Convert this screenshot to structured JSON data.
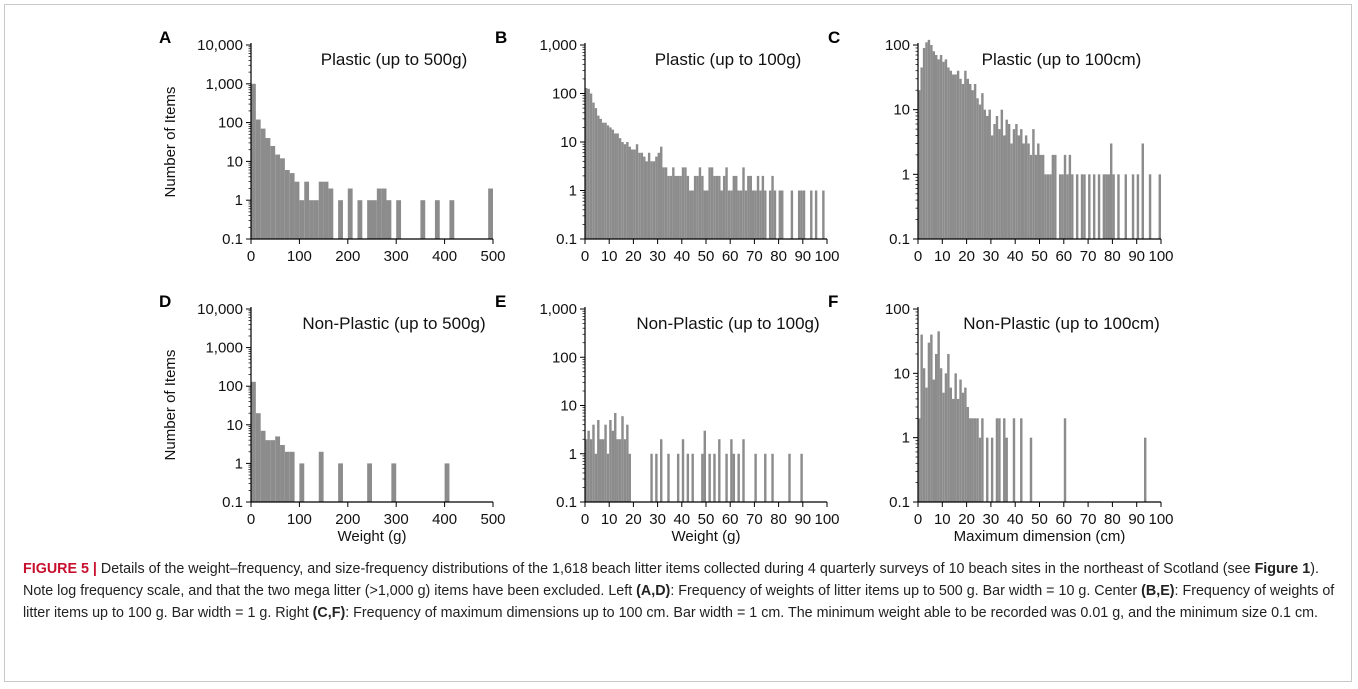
{
  "figure": {
    "y_axis_label": "Number of Items",
    "y_ticks": [
      "0.1",
      "1",
      "10",
      "100",
      "1,000",
      "10,000"
    ]
  },
  "caption": {
    "label": "FIGURE 5 |",
    "text1": " Details of the weight–frequency, and size-frequency distributions of the 1,618 beach litter items collected during 4 quarterly surveys of 10 beach sites in the northeast of Scotland (see ",
    "fig_ref": "Figure 1",
    "text2": "). Note log frequency scale, and that the two mega litter (>1,000 g) items have been excluded. Left ",
    "ref_ad": "(A,D)",
    "text3": ": Frequency of weights of litter items up to 500 g. Bar width = 10 g. Center ",
    "ref_be": "(B,E)",
    "text4": ": Frequency of weights of litter items up to 100 g. Bar width = 1 g. Right ",
    "ref_cf": "(C,F)",
    "text5": ": Frequency of maximum dimensions up to 100 cm. Bar width = 1 cm. The minimum weight able to be recorded was 0.01 g, and the minimum size 0.1 cm."
  },
  "colors": {
    "bar": "#8c8c8c",
    "axis": "#000000",
    "caption_label": "#c8102e"
  },
  "chart_data": [
    {
      "panel": "A",
      "type": "bar",
      "title": "Plastic (up to 500g)",
      "scale": "log",
      "xlabel": "",
      "xlim": [
        0,
        500
      ],
      "x_ticks": [
        "0",
        "100",
        "200",
        "300",
        "400",
        "500"
      ],
      "ylim": [
        0.1,
        10000
      ],
      "y_ticks": [
        "0.1",
        "1",
        "10",
        "100",
        "1,000",
        "10,000"
      ],
      "ylabel": "Number of Items",
      "bin_width": 10,
      "bins": [
        0,
        10,
        20,
        30,
        40,
        50,
        60,
        70,
        80,
        90,
        100,
        110,
        120,
        130,
        140,
        150,
        160,
        180,
        200,
        220,
        240,
        250,
        260,
        270,
        280,
        300,
        350,
        380,
        410,
        490
      ],
      "values": [
        1000,
        120,
        70,
        40,
        25,
        15,
        12,
        6,
        5,
        3,
        1,
        3,
        1,
        1,
        3,
        3,
        2,
        1,
        2,
        1,
        1,
        1,
        2,
        2,
        1,
        1,
        1,
        1,
        1,
        2
      ]
    },
    {
      "panel": "B",
      "type": "bar",
      "title": "Plastic (up to 100g)",
      "scale": "log",
      "xlabel": "",
      "xlim": [
        0,
        100
      ],
      "x_ticks": [
        "0",
        "10",
        "20",
        "30",
        "40",
        "50",
        "60",
        "70",
        "80",
        "90",
        "100"
      ],
      "ylim": [
        0.1,
        1000
      ],
      "y_ticks": [
        "0.1",
        "1",
        "10",
        "100",
        "1,000"
      ],
      "bin_width": 1,
      "bins": [
        0,
        1,
        2,
        3,
        4,
        5,
        6,
        7,
        8,
        9,
        10,
        11,
        12,
        13,
        14,
        15,
        16,
        17,
        18,
        19,
        20,
        21,
        22,
        23,
        24,
        25,
        26,
        27,
        28,
        29,
        30,
        31,
        32,
        33,
        34,
        35,
        36,
        37,
        38,
        39,
        40,
        41,
        42,
        43,
        44,
        45,
        46,
        47,
        48,
        49,
        50,
        51,
        52,
        53,
        54,
        55,
        56,
        57,
        58,
        59,
        60,
        61,
        62,
        63,
        64,
        65,
        66,
        67,
        68,
        69,
        70,
        71,
        72,
        73,
        74,
        76,
        77,
        78,
        80,
        81,
        85,
        88,
        89,
        90,
        93,
        95,
        98
      ],
      "values": [
        130,
        125,
        100,
        65,
        50,
        35,
        30,
        25,
        25,
        22,
        20,
        18,
        15,
        15,
        12,
        10,
        9,
        10,
        8,
        7,
        7,
        9,
        6,
        6,
        5,
        4,
        6,
        4,
        4,
        5,
        6,
        8,
        3,
        3,
        2,
        2,
        3,
        2,
        2,
        2,
        3,
        3,
        2,
        1,
        1,
        2,
        2,
        3,
        2,
        1,
        1,
        3,
        3,
        2,
        2,
        2,
        1,
        2,
        3,
        1,
        1,
        2,
        2,
        1,
        1,
        3,
        1,
        2,
        2,
        1,
        1,
        2,
        1,
        2,
        1,
        1,
        2,
        1,
        1,
        1,
        1,
        1,
        1,
        1,
        1,
        1,
        1
      ]
    },
    {
      "panel": "C",
      "type": "bar",
      "title": "Plastic (up to 100cm)",
      "scale": "log",
      "xlabel": "",
      "xlim": [
        0,
        100
      ],
      "x_ticks": [
        "0",
        "10",
        "20",
        "30",
        "40",
        "50",
        "60",
        "70",
        "80",
        "90",
        "100"
      ],
      "ylim": [
        0.1,
        100
      ],
      "y_ticks": [
        "0.1",
        "1",
        "10",
        "100"
      ],
      "bin_width": 1,
      "bins": [
        0,
        1,
        2,
        3,
        4,
        5,
        6,
        7,
        8,
        9,
        10,
        11,
        12,
        13,
        14,
        15,
        16,
        17,
        18,
        19,
        20,
        21,
        22,
        23,
        24,
        25,
        26,
        27,
        28,
        29,
        30,
        31,
        32,
        33,
        34,
        35,
        36,
        37,
        38,
        39,
        40,
        41,
        42,
        43,
        44,
        45,
        46,
        47,
        48,
        49,
        50,
        51,
        52,
        53,
        54,
        55,
        56,
        58,
        59,
        60,
        61,
        62,
        63,
        65,
        67,
        68,
        70,
        72,
        74,
        76,
        77,
        78,
        79,
        80,
        82,
        85,
        88,
        90,
        92,
        95,
        99
      ],
      "values": [
        20,
        45,
        90,
        110,
        120,
        100,
        80,
        70,
        60,
        70,
        55,
        60,
        45,
        40,
        35,
        35,
        40,
        30,
        25,
        40,
        30,
        25,
        20,
        25,
        15,
        12,
        18,
        10,
        8,
        10,
        4,
        6,
        8,
        5,
        10,
        4,
        7,
        6,
        3,
        5,
        6,
        4,
        5,
        3,
        4,
        3,
        2,
        5,
        2,
        3,
        2,
        2,
        1,
        1,
        1,
        2,
        2,
        1,
        1,
        2,
        1,
        2,
        1,
        1,
        1,
        1,
        1,
        1,
        1,
        1,
        1,
        1,
        3,
        1,
        1,
        1,
        1,
        1,
        3,
        1,
        1
      ]
    },
    {
      "panel": "D",
      "type": "bar",
      "title": "Non-Plastic (up to 500g)",
      "scale": "log",
      "xlabel": "Weight (g)",
      "xlim": [
        0,
        500
      ],
      "x_ticks": [
        "0",
        "100",
        "200",
        "300",
        "400",
        "500"
      ],
      "ylim": [
        0.1,
        10000
      ],
      "y_ticks": [
        "0.1",
        "1",
        "10",
        "100",
        "1,000",
        "10,000"
      ],
      "ylabel": "Number of Items",
      "bin_width": 10,
      "bins": [
        0,
        10,
        20,
        30,
        40,
        50,
        60,
        70,
        80,
        100,
        140,
        180,
        240,
        290,
        400
      ],
      "values": [
        130,
        20,
        7,
        4,
        4,
        5,
        3,
        2,
        2,
        1,
        2,
        1,
        1,
        1,
        1
      ]
    },
    {
      "panel": "E",
      "type": "bar",
      "title": "Non-Plastic (up to 100g)",
      "scale": "log",
      "xlabel": "Weight (g)",
      "xlim": [
        0,
        100
      ],
      "x_ticks": [
        "0",
        "10",
        "20",
        "30",
        "40",
        "50",
        "60",
        "70",
        "80",
        "90",
        "100"
      ],
      "ylim": [
        0.1,
        1000
      ],
      "y_ticks": [
        "0.1",
        "1",
        "10",
        "100",
        "1,000"
      ],
      "bin_width": 1,
      "bins": [
        0,
        1,
        2,
        3,
        4,
        5,
        6,
        7,
        8,
        9,
        10,
        11,
        12,
        13,
        14,
        15,
        16,
        17,
        18,
        27,
        29,
        31,
        34,
        38,
        40,
        42,
        44,
        48,
        49,
        51,
        53,
        55,
        58,
        60,
        61,
        63,
        65,
        70,
        74,
        77,
        84,
        89
      ],
      "values": [
        2,
        3,
        2,
        4,
        1,
        5,
        2,
        2,
        4,
        1,
        5,
        3,
        7,
        2,
        2,
        6,
        2,
        4,
        1,
        1,
        1,
        2,
        1,
        1,
        2,
        1,
        1,
        1,
        3,
        1,
        1,
        2,
        1,
        2,
        1,
        1,
        2,
        1,
        1,
        1,
        1,
        1
      ]
    },
    {
      "panel": "F",
      "type": "bar",
      "title": "Non-Plastic (up to 100cm)",
      "scale": "log",
      "xlabel": "Maximum dimension (cm)",
      "xlim": [
        0,
        100
      ],
      "x_ticks": [
        "0",
        "10",
        "20",
        "30",
        "40",
        "50",
        "60",
        "70",
        "80",
        "90",
        "100"
      ],
      "ylim": [
        0.1,
        100
      ],
      "y_ticks": [
        "0.1",
        "1",
        "10",
        "100"
      ],
      "bin_width": 1,
      "bins": [
        0,
        1,
        2,
        3,
        4,
        5,
        6,
        7,
        8,
        9,
        10,
        11,
        12,
        13,
        14,
        15,
        16,
        17,
        18,
        19,
        20,
        21,
        22,
        23,
        24,
        25,
        26,
        28,
        30,
        32,
        33,
        35,
        36,
        39,
        42,
        46,
        60,
        93
      ],
      "values": [
        2,
        40,
        12,
        6,
        30,
        40,
        8,
        20,
        45,
        12,
        5,
        10,
        20,
        6,
        4,
        10,
        4,
        8,
        5,
        6,
        3,
        2,
        2,
        2,
        2,
        1,
        2,
        1,
        1,
        2,
        2,
        2,
        1,
        2,
        2,
        1,
        2,
        1
      ]
    }
  ]
}
